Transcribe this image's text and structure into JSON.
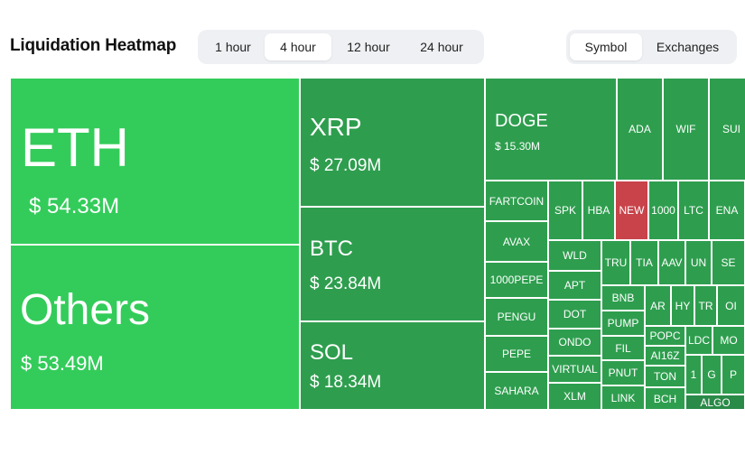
{
  "header": {
    "title": "Liquidation Heatmap",
    "time_tabs": [
      "1 hour",
      "4 hour",
      "12 hour",
      "24 hour"
    ],
    "active_time_tab": "4 hour",
    "group_tabs": [
      "Symbol",
      "Exchanges"
    ],
    "active_group_tab": "Symbol"
  },
  "colors": {
    "bright_green": "#33cc5a",
    "mid_green": "#2e9e4e",
    "dark_green": "#2a8a48",
    "red": "#c8434a"
  },
  "heatmap": {
    "major": [
      {
        "symbol": "ETH",
        "value": "$ 54.33M"
      },
      {
        "symbol": "Others",
        "value": "$ 53.49M"
      },
      {
        "symbol": "XRP",
        "value": "$ 27.09M"
      },
      {
        "symbol": "BTC",
        "value": "$ 23.84M"
      },
      {
        "symbol": "SOL",
        "value": "$ 18.34M"
      },
      {
        "symbol": "DOGE",
        "value": "$ 15.30M"
      }
    ],
    "minor": [
      "ADA",
      "WIF",
      "SUI",
      "FARTCOIN",
      "SPK",
      "HBA",
      "NEW",
      "1000",
      "LTC",
      "ENA",
      "AVAX",
      "WLD",
      "TRU",
      "TIA",
      "AAV",
      "UN",
      "SE",
      "1000PEPE",
      "APT",
      "AR",
      "HY",
      "TR",
      "OI",
      "PENGU",
      "DOT",
      "BNB",
      "PUMP",
      "POPC",
      "LDC",
      "MO",
      "ONDO",
      "FIL",
      "AI16Z",
      "1",
      "G",
      "P",
      "PEPE",
      "VIRTUAL",
      "PNUT",
      "TON",
      "SAHARA",
      "XLM",
      "LINK",
      "BCH",
      "ALGO"
    ]
  }
}
